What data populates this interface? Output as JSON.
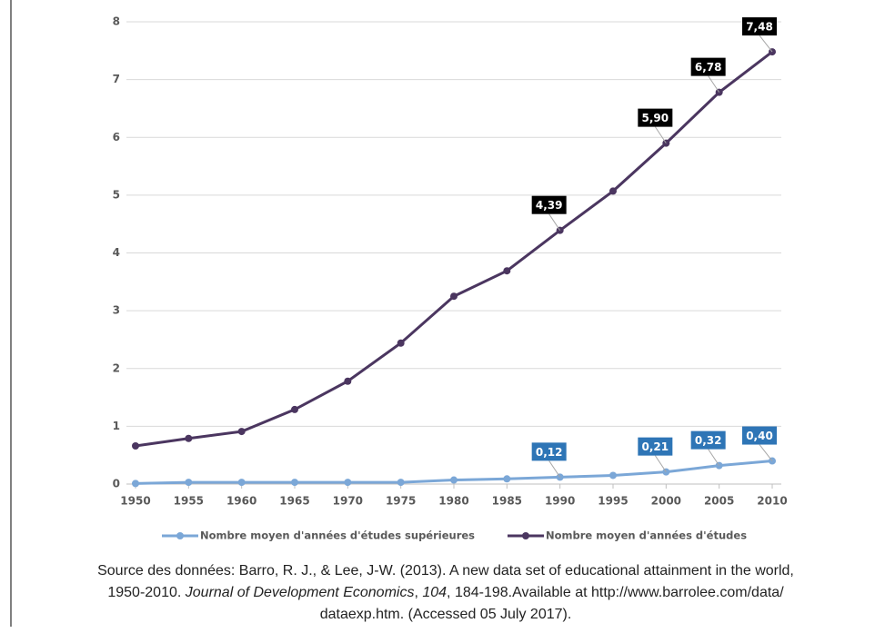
{
  "chart_data": {
    "type": "line",
    "x": [
      1950,
      1955,
      1960,
      1965,
      1970,
      1975,
      1980,
      1985,
      1990,
      1995,
      2000,
      2005,
      2010
    ],
    "xlim": [
      1950,
      2010
    ],
    "xticks": [
      1950,
      1955,
      1960,
      1965,
      1970,
      1975,
      1980,
      1985,
      1990,
      1995,
      2000,
      2005,
      2010
    ],
    "ylim": [
      0,
      8
    ],
    "yticks": [
      0,
      1,
      2,
      3,
      4,
      5,
      6,
      7,
      8
    ],
    "grid": true,
    "legend": "bottom",
    "series": [
      {
        "name": "Nombre moyen d'années d'études supérieures",
        "color": "#7ba7d7",
        "values": [
          0.01,
          0.03,
          0.03,
          0.03,
          0.03,
          0.03,
          0.07,
          0.09,
          0.12,
          0.15,
          0.21,
          0.32,
          0.4
        ],
        "value_labels": [
          null,
          null,
          null,
          null,
          null,
          null,
          null,
          null,
          "0,12",
          null,
          "0,21",
          "0,32",
          "0,40"
        ],
        "label_color": "#2e75b6"
      },
      {
        "name": "Nombre moyen d'années d'études",
        "color": "#4b3660",
        "values": [
          0.66,
          0.79,
          0.91,
          1.29,
          1.78,
          2.44,
          3.25,
          3.69,
          4.39,
          5.07,
          5.9,
          6.78,
          7.48
        ],
        "value_labels": [
          null,
          null,
          null,
          null,
          null,
          null,
          null,
          null,
          "4,39",
          null,
          "5,90",
          "6,78",
          "7,48"
        ],
        "label_color": "#000000"
      }
    ]
  },
  "source": {
    "line1": "Source des données: Barro, R. J., & Lee, J-W. (2013). A new data set of educational attainment in the world,",
    "line2": [
      "1950-2010. ",
      "Journal of Development Economics",
      ", ",
      "104",
      ", 184-198.Available at http://www.barrolee.com/data/"
    ],
    "line3": "dataexp.htm. (Accessed 05 July 2017)."
  }
}
